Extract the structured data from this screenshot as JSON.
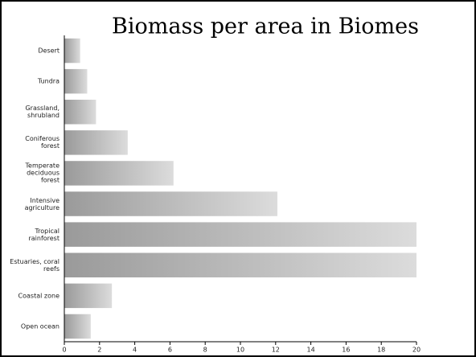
{
  "chart_data": {
    "type": "bar",
    "orientation": "horizontal",
    "title": "Biomass per area in Biomes",
    "categories": [
      "Desert",
      "Tundra",
      "Grassland, shrubland",
      "Coniferous forest",
      "Temperate deciduous forest",
      "Intensive agriculture",
      "Tropical rainforest",
      "Estuaries, coral reefs",
      "Coastal zone",
      "Open ocean"
    ],
    "values": [
      0.9,
      1.3,
      1.8,
      3.6,
      6.2,
      12.1,
      20,
      20,
      2.7,
      1.5
    ],
    "color": "#b8b8b8",
    "xlim": [
      0,
      20
    ],
    "xticks": [
      0,
      2,
      4,
      6,
      8,
      10,
      12,
      14,
      16,
      18,
      20
    ]
  }
}
